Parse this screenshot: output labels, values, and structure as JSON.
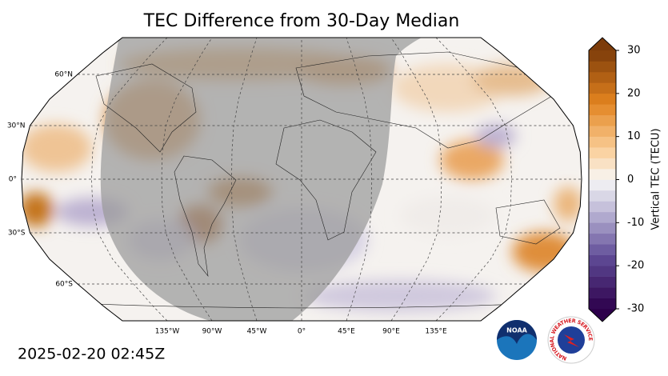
{
  "header": {
    "title": "TEC Difference from 30-Day Median"
  },
  "map": {
    "lat_labels": [
      "60°N",
      "30°N",
      "0°",
      "30°S",
      "60°S"
    ],
    "lon_labels": [
      "135°W",
      "90°W",
      "45°W",
      "0°",
      "45°E",
      "90°E",
      "135°E"
    ]
  },
  "colorbar": {
    "label": "Vertical TEC (TECU)",
    "lim": [
      -30,
      30
    ],
    "ticks": [
      -30,
      -20,
      -10,
      0,
      10,
      20,
      30
    ]
  },
  "footer": {
    "timestamp": "2025-02-20 02:45Z"
  },
  "logos": {
    "noaa": "NOAA",
    "nws": "NATIONAL WEATHER SERVICE"
  }
}
